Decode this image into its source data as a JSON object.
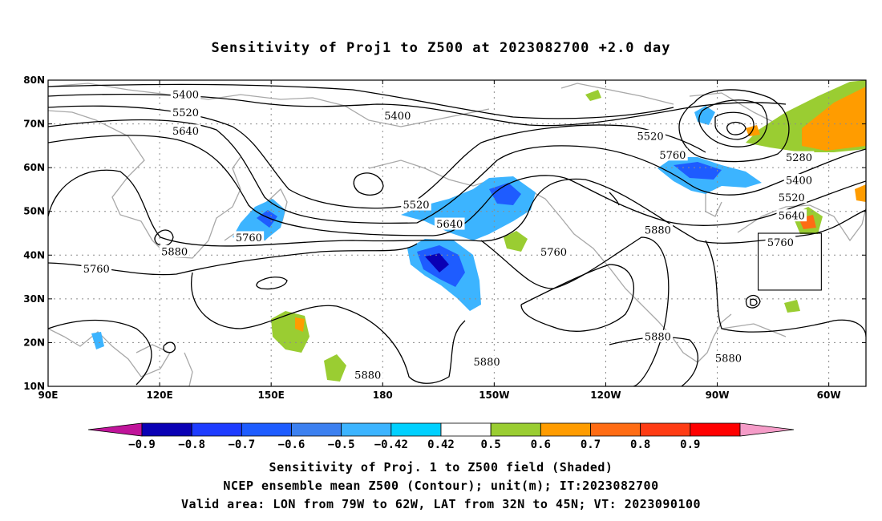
{
  "colors": {
    "land_outline": "#a8a8a8",
    "contour": "#000000",
    "grid": "#8c8c8c",
    "box": "#000000"
  },
  "chart_data": {
    "type": "map",
    "title": "Sensitivity of Proj1 to Z500 at 2023082700 +2.0 day",
    "x_ticks": [
      "90E",
      "120E",
      "150E",
      "180",
      "150W",
      "120W",
      "90W",
      "60W"
    ],
    "y_ticks": [
      "10N",
      "20N",
      "30N",
      "40N",
      "50N",
      "60N",
      "70N",
      "80N"
    ],
    "lon_range": [
      90,
      310
    ],
    "lat_range": [
      10,
      80
    ],
    "grid": true,
    "gridline_style": "dotted",
    "colorbar": {
      "labels": [
        "-0.9",
        "-0.8",
        "-0.7",
        "-0.6",
        "-0.5",
        "-0.42",
        "0.42",
        "0.5",
        "0.6",
        "0.7",
        "0.8",
        "0.9"
      ],
      "colors": [
        "#c0149a",
        "#0a00b4",
        "#1e3cff",
        "#1e5cff",
        "#3c80f0",
        "#3cb4ff",
        "#00d0ff",
        "#ffffff",
        "#9acd32",
        "#ff9c00",
        "#ff6c14",
        "#ff3c14",
        "#ff0000",
        "#f59cc8"
      ]
    },
    "contour_labels": [
      {
        "text": "5400",
        "lon": 127,
        "lat": 76.7
      },
      {
        "text": "5400",
        "lon": 184,
        "lat": 71.8
      },
      {
        "text": "5520",
        "lon": 127,
        "lat": 72.6
      },
      {
        "text": "5640",
        "lon": 127,
        "lat": 68.4
      },
      {
        "text": "5520",
        "lon": 189,
        "lat": 51.5
      },
      {
        "text": "5640",
        "lon": 198,
        "lat": 47.1
      },
      {
        "text": "5760",
        "lon": 144,
        "lat": 44.0
      },
      {
        "text": "5880",
        "lon": 124,
        "lat": 40.8
      },
      {
        "text": "5760",
        "lon": 103,
        "lat": 36.8
      },
      {
        "text": "5520",
        "lon": 252,
        "lat": 67.2
      },
      {
        "text": "5760",
        "lon": 258,
        "lat": 62.9
      },
      {
        "text": "5880",
        "lon": 254,
        "lat": 45.7
      },
      {
        "text": "5760",
        "lon": 226,
        "lat": 40.7
      },
      {
        "text": "5280",
        "lon": 292,
        "lat": 62.3
      },
      {
        "text": "5400",
        "lon": 292,
        "lat": 57.1
      },
      {
        "text": "5520",
        "lon": 290,
        "lat": 53.2
      },
      {
        "text": "5640",
        "lon": 290,
        "lat": 49.0
      },
      {
        "text": "5760",
        "lon": 287,
        "lat": 42.9
      },
      {
        "text": "5880",
        "lon": 176,
        "lat": 12.6
      },
      {
        "text": "5880",
        "lon": 208,
        "lat": 15.6
      },
      {
        "text": "5880",
        "lon": 254,
        "lat": 21.4
      },
      {
        "text": "5880",
        "lon": 273,
        "lat": 16.4
      }
    ],
    "valid_area": {
      "lon": [
        281,
        298
      ],
      "lat": [
        32,
        45
      ]
    }
  },
  "captions": {
    "line1": "Sensitivity of Proj. 1 to Z500 field (Shaded)",
    "line2": "NCEP ensemble mean Z500 (Contour); unit(m); IT:2023082700",
    "line3": "Valid area: LON from 79W to 62W, LAT from 32N to 45N; VT: 2023090100"
  }
}
